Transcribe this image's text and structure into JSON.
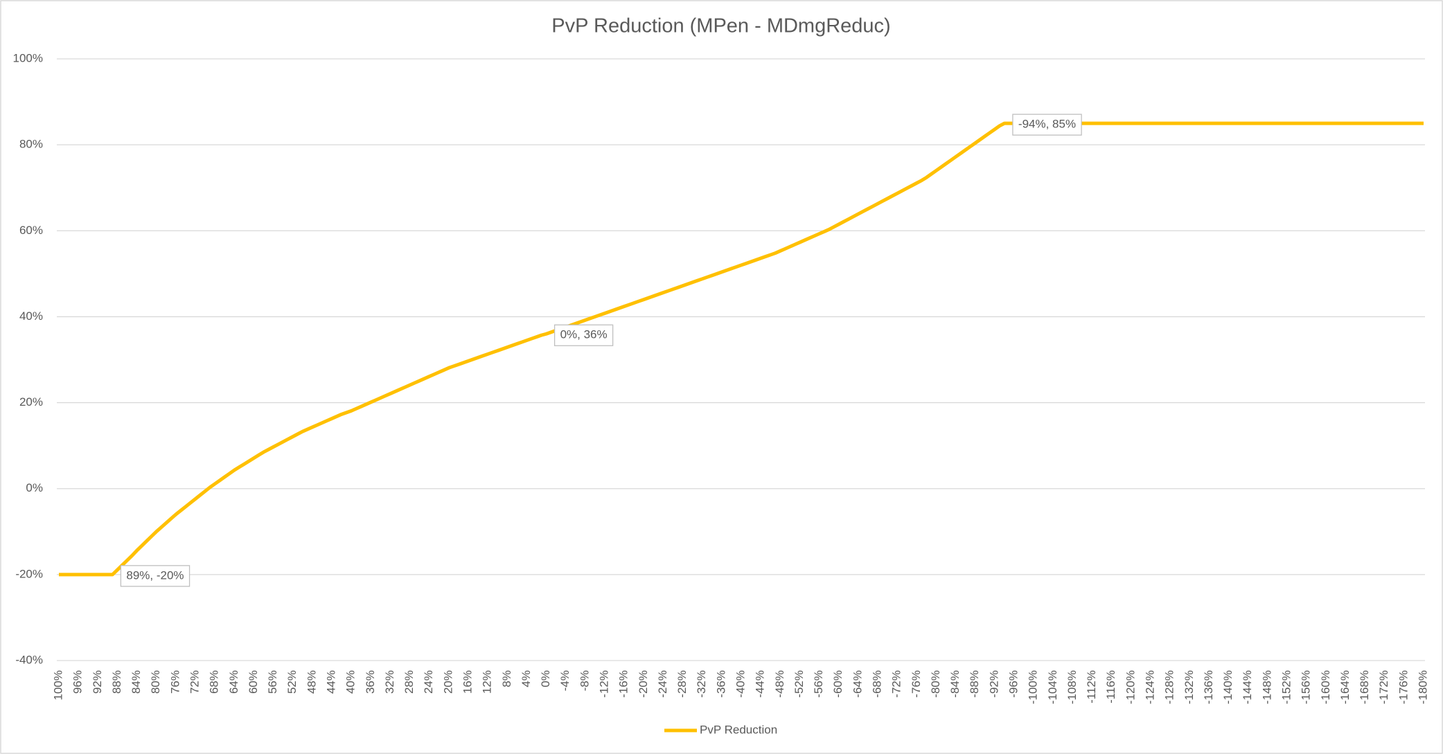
{
  "chart_data": {
    "type": "line",
    "title": "PvP Reduction (MPen - MDmgReduc)",
    "categories": [
      "100%",
      null,
      null,
      null,
      "96%",
      null,
      null,
      null,
      "92%",
      null,
      null,
      null,
      "88%",
      null,
      null,
      null,
      "84%",
      null,
      null,
      null,
      "80%",
      null,
      null,
      null,
      "76%",
      null,
      null,
      null,
      "72%",
      null,
      null,
      null,
      "68%",
      null,
      null,
      null,
      "64%",
      null,
      null,
      null,
      "60%",
      null,
      null,
      null,
      "56%",
      null,
      null,
      null,
      "52%",
      null,
      null,
      null,
      "48%",
      null,
      null,
      null,
      "44%",
      null,
      null,
      null,
      "40%",
      null,
      null,
      null,
      "36%",
      null,
      null,
      null,
      "32%",
      null,
      null,
      null,
      "28%",
      null,
      null,
      null,
      "24%",
      null,
      null,
      null,
      "20%",
      null,
      null,
      null,
      "16%",
      null,
      null,
      null,
      "12%",
      null,
      null,
      null,
      "8%",
      null,
      null,
      null,
      "4%",
      null,
      null,
      null,
      "0%",
      null,
      null,
      null,
      "-4%",
      null,
      null,
      null,
      "-8%",
      null,
      null,
      null,
      "-12%",
      null,
      null,
      null,
      "-16%",
      null,
      null,
      null,
      "-20%",
      null,
      null,
      null,
      "-24%",
      null,
      null,
      null,
      "-28%",
      null,
      null,
      null,
      "-32%",
      null,
      null,
      null,
      "-36%",
      null,
      null,
      null,
      "-40%",
      null,
      null,
      null,
      "-44%",
      null,
      null,
      null,
      "-48%",
      null,
      null,
      null,
      "-52%",
      null,
      null,
      null,
      "-56%",
      null,
      null,
      null,
      "-60%",
      null,
      null,
      null,
      "-64%",
      null,
      null,
      null,
      "-68%",
      null,
      null,
      null,
      "-72%",
      null,
      null,
      null,
      "-76%",
      null,
      null,
      null,
      "-80%",
      null,
      null,
      null,
      "-84%",
      null,
      null,
      null,
      "-88%",
      null,
      null,
      null,
      "-92%",
      null,
      null,
      null,
      "-96%",
      null,
      null,
      null,
      "-100%",
      null,
      null,
      null,
      "-104%",
      null,
      null,
      null,
      "-108%",
      null,
      null,
      null,
      "-112%",
      null,
      null,
      null,
      "-116%",
      null,
      null,
      null,
      "-120%",
      null,
      null,
      null,
      "-124%",
      null,
      null,
      null,
      "-128%",
      null,
      null,
      null,
      "-132%",
      null,
      null,
      null,
      "-136%",
      null,
      null,
      null,
      "-140%",
      null,
      null,
      null,
      "-144%",
      null,
      null,
      null,
      "-148%",
      null,
      null,
      null,
      "-152%",
      null,
      null,
      null,
      "-156%",
      null,
      null,
      null,
      "-160%",
      null,
      null,
      null,
      "-164%",
      null,
      null,
      null,
      "-168%",
      null,
      null,
      null,
      "-172%",
      null,
      null,
      null,
      "-176%",
      null,
      null,
      null,
      "-180%"
    ],
    "series": [
      {
        "name": "PvP Reduction",
        "color": "#FFC000",
        "values": [
          -20,
          -20,
          -20,
          -20,
          -20,
          -20,
          -20,
          -20,
          -20,
          -20,
          -20,
          -20,
          -18.9,
          -17.8,
          -16.7,
          -15.6,
          -14.4,
          -13.3,
          -12.2,
          -11.1,
          -10,
          -9,
          -8,
          -7,
          -6,
          -5.1,
          -4.2,
          -3.3,
          -2.4,
          -1.5,
          -0.6,
          0.3,
          1.1,
          1.9,
          2.7,
          3.5,
          4.3,
          5,
          5.7,
          6.4,
          7.1,
          7.8,
          8.5,
          9.1,
          9.7,
          10.3,
          10.9,
          11.5,
          12.1,
          12.7,
          13.3,
          13.8,
          14.3,
          14.8,
          15.3,
          15.8,
          16.3,
          16.8,
          17.3,
          17.7,
          18.1,
          18.6,
          19.1,
          19.6,
          20.1,
          20.6,
          21.1,
          21.6,
          22.1,
          22.6,
          23.1,
          23.6,
          24.1,
          24.6,
          25.1,
          25.6,
          26.1,
          26.6,
          27.1,
          27.6,
          28.1,
          28.5,
          28.9,
          29.3,
          29.7,
          30.1,
          30.5,
          30.9,
          31.3,
          31.7,
          32.1,
          32.5,
          32.9,
          33.3,
          33.7,
          34.1,
          34.5,
          34.9,
          35.3,
          35.7,
          36,
          36.4,
          36.8,
          37.2,
          37.6,
          38,
          38.4,
          38.8,
          39.2,
          39.6,
          40,
          40.4,
          40.8,
          41.2,
          41.6,
          42,
          42.4,
          42.8,
          43.2,
          43.6,
          44,
          44.4,
          44.8,
          45.2,
          45.6,
          46,
          46.4,
          46.8,
          47.2,
          47.6,
          48,
          48.4,
          48.8,
          49.2,
          49.6,
          50,
          50.4,
          50.8,
          51.2,
          51.6,
          52,
          52.4,
          52.8,
          53.2,
          53.6,
          54,
          54.4,
          54.8,
          55.3,
          55.8,
          56.3,
          56.8,
          57.3,
          57.8,
          58.3,
          58.8,
          59.3,
          59.8,
          60.3,
          60.9,
          61.5,
          62.1,
          62.7,
          63.3,
          63.9,
          64.5,
          65.1,
          65.7,
          66.3,
          66.9,
          67.5,
          68.1,
          68.7,
          69.3,
          69.9,
          70.5,
          71.1,
          71.7,
          72.4,
          73.2,
          74,
          74.8,
          75.6,
          76.4,
          77.2,
          78,
          78.8,
          79.6,
          80.4,
          81.2,
          82,
          82.8,
          83.6,
          84.4,
          85,
          85,
          85,
          85,
          85,
          85,
          85,
          85,
          85,
          85,
          85,
          85,
          85,
          85,
          85,
          85,
          85,
          85,
          85,
          85,
          85,
          85,
          85,
          85,
          85,
          85,
          85,
          85,
          85,
          85,
          85,
          85,
          85,
          85,
          85,
          85,
          85,
          85,
          85,
          85,
          85,
          85,
          85,
          85,
          85,
          85,
          85,
          85,
          85,
          85,
          85,
          85,
          85,
          85,
          85,
          85,
          85,
          85,
          85,
          85,
          85,
          85,
          85,
          85,
          85,
          85,
          85,
          85,
          85,
          85,
          85,
          85,
          85,
          85,
          85,
          85,
          85,
          85,
          85,
          85,
          85,
          85,
          85,
          85,
          85,
          85,
          85
        ],
        "value_labels": [
          null,
          null,
          null,
          null,
          null,
          null,
          null,
          null,
          null,
          null,
          null,
          "89%, -20%",
          null,
          null,
          null,
          null,
          null,
          null,
          null,
          null,
          null,
          null,
          null,
          null,
          null,
          null,
          null,
          null,
          null,
          null,
          null,
          null,
          null,
          null,
          null,
          null,
          null,
          null,
          null,
          null,
          null,
          null,
          null,
          null,
          null,
          null,
          null,
          null,
          null,
          null,
          null,
          null,
          null,
          null,
          null,
          null,
          null,
          null,
          null,
          null,
          null,
          null,
          null,
          null,
          null,
          null,
          null,
          null,
          null,
          null,
          null,
          null,
          null,
          null,
          null,
          null,
          null,
          null,
          null,
          null,
          null,
          null,
          null,
          null,
          null,
          null,
          null,
          null,
          null,
          null,
          null,
          null,
          null,
          null,
          null,
          null,
          null,
          null,
          null,
          null,
          "0%, 36%",
          null,
          null,
          null,
          null,
          null,
          null,
          null,
          null,
          null,
          null,
          null,
          null,
          null,
          null,
          null,
          null,
          null,
          null,
          null,
          null,
          null,
          null,
          null,
          null,
          null,
          null,
          null,
          null,
          null,
          null,
          null,
          null,
          null,
          null,
          null,
          null,
          null,
          null,
          null,
          null,
          null,
          null,
          null,
          null,
          null,
          null,
          null,
          null,
          null,
          null,
          null,
          null,
          null,
          null,
          null,
          null,
          null,
          null,
          null,
          null,
          null,
          null,
          null,
          null,
          null,
          null,
          null,
          null,
          null,
          null,
          null,
          null,
          null,
          null,
          null,
          null,
          null,
          null,
          null,
          null,
          null,
          null,
          null,
          null,
          null,
          null,
          null,
          null,
          null,
          null,
          null,
          null,
          null,
          "-94%, 85%",
          null,
          null,
          null,
          null,
          null,
          null,
          null,
          null,
          null,
          null,
          null,
          null,
          null,
          null,
          null,
          null,
          null,
          null,
          null,
          null,
          null,
          null,
          null,
          null,
          null,
          null,
          null,
          null,
          null,
          null,
          null,
          null,
          null,
          null,
          null,
          null,
          null,
          null,
          null,
          null,
          null,
          null,
          null,
          null,
          null,
          null,
          null,
          null,
          null,
          null,
          null,
          null,
          null,
          null,
          null,
          null,
          null,
          null,
          null,
          null,
          null,
          null,
          null,
          null,
          null,
          null,
          null,
          null,
          null,
          null,
          null,
          null,
          null,
          null,
          null,
          null,
          null,
          null,
          null,
          null,
          null,
          null,
          null,
          null,
          null,
          null
        ]
      }
    ],
    "ylim": [
      -40,
      100
    ],
    "yticks": [
      {
        "value": -40,
        "label": "-40%"
      },
      {
        "value": -20,
        "label": "-20%"
      },
      {
        "value": 0,
        "label": "0%"
      },
      {
        "value": 20,
        "label": "20%"
      },
      {
        "value": 40,
        "label": "40%"
      },
      {
        "value": 60,
        "label": "60%"
      },
      {
        "value": 80,
        "label": "80%"
      },
      {
        "value": 100,
        "label": "100%"
      }
    ],
    "grid": true,
    "legend": "bottom"
  }
}
